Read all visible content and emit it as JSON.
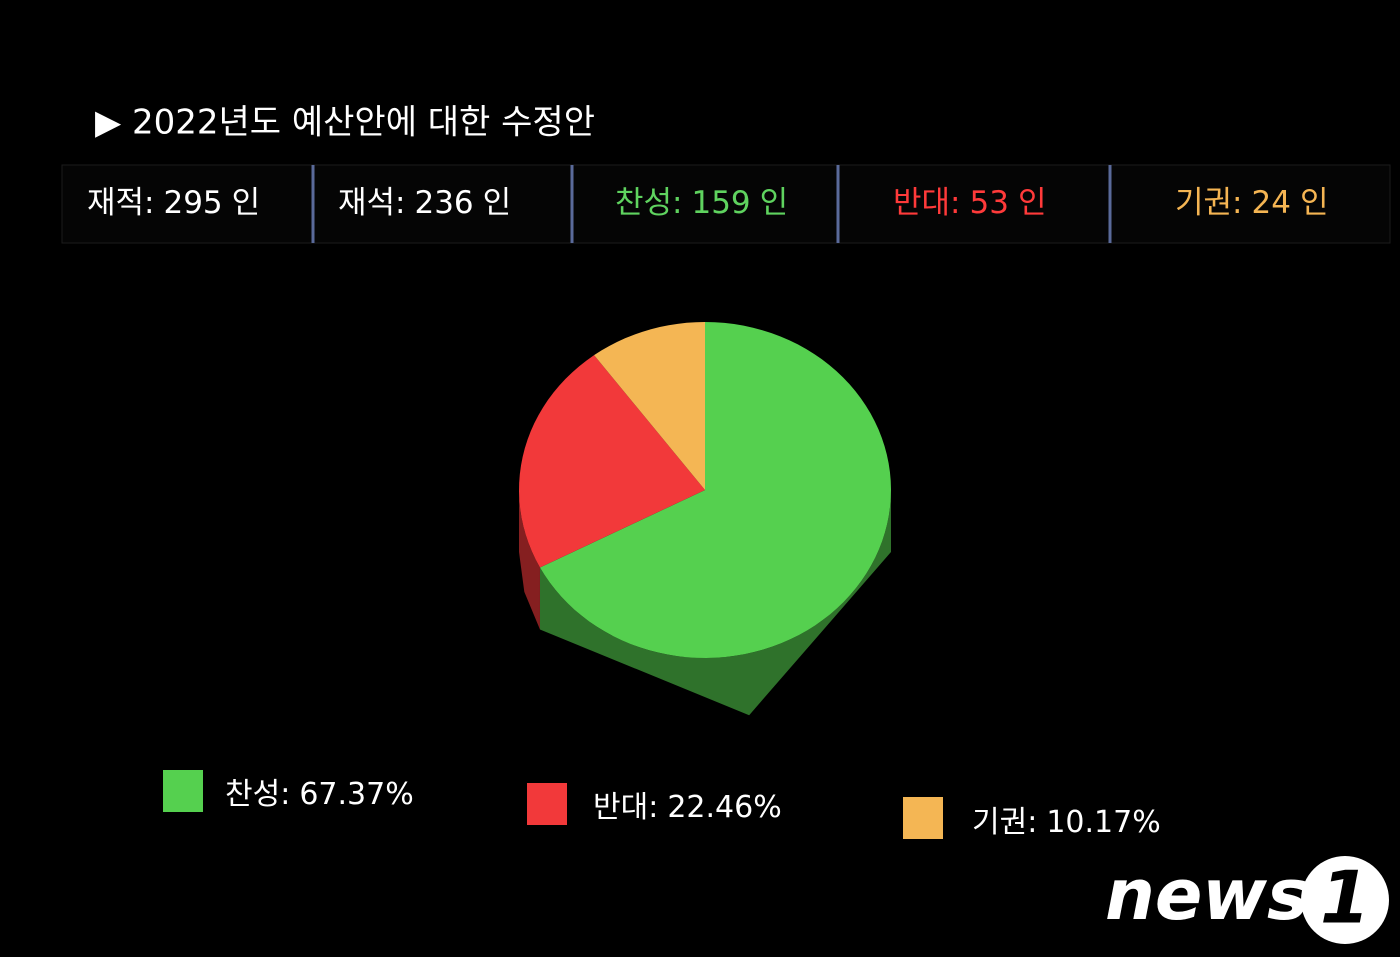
{
  "chart_data": {
    "type": "pie",
    "title": "▶ 2022년도 예산안에 대한 수정안",
    "stats": [
      {
        "label": "재적:",
        "value": 295,
        "unit": "인",
        "color": "#ffffff"
      },
      {
        "label": "재석:",
        "value": 236,
        "unit": "인",
        "color": "#ffffff"
      },
      {
        "label": "찬성:",
        "value": 159,
        "unit": "인",
        "color": "#5fd35f"
      },
      {
        "label": "반대:",
        "value": 53,
        "unit": "인",
        "color": "#ff3a3a"
      },
      {
        "label": "기권:",
        "value": 24,
        "unit": "인",
        "color": "#f5b553"
      }
    ],
    "categories": [
      "찬성:",
      "반대:",
      "기권:"
    ],
    "values": [
      67.37,
      22.46,
      10.17
    ],
    "value_labels": [
      "67.37%",
      "22.46%",
      "10.17%"
    ],
    "colors": [
      "#55d04f",
      "#f2393a",
      "#f4b654"
    ],
    "watermark": [
      "news",
      "1"
    ]
  }
}
